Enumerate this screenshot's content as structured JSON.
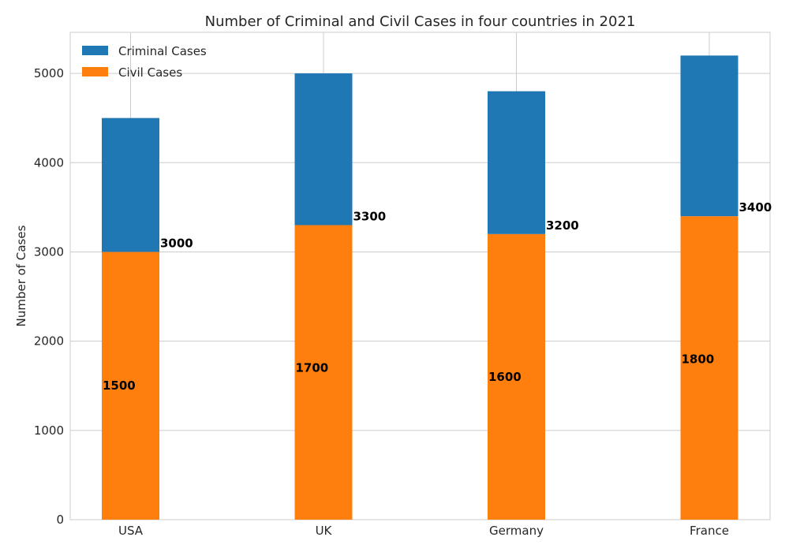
{
  "chart_data": {
    "type": "bar",
    "stacked": true,
    "title": "Number of Criminal and Civil Cases in four countries in 2021",
    "xlabel": "",
    "ylabel": "Number of Cases",
    "categories": [
      "USA",
      "UK",
      "Germany",
      "France"
    ],
    "ylim": [
      0,
      5460
    ],
    "yticks": [
      0,
      1000,
      2000,
      3000,
      4000,
      5000
    ],
    "grid": true,
    "legend_position": "top-left",
    "series": [
      {
        "name": "Criminal Cases",
        "color": "#1f77b4",
        "values": [
          1500,
          1700,
          1600,
          1800
        ]
      },
      {
        "name": "Civil Cases",
        "color": "#ff7f0e",
        "values": [
          3000,
          3300,
          3200,
          3400
        ]
      }
    ],
    "annotations": [
      {
        "category": "USA",
        "labels": [
          "1500",
          "3000"
        ]
      },
      {
        "category": "UK",
        "labels": [
          "1700",
          "3300"
        ]
      },
      {
        "category": "Germany",
        "labels": [
          "1600",
          "3200"
        ]
      },
      {
        "category": "France",
        "labels": [
          "1800",
          "3400"
        ]
      }
    ]
  }
}
